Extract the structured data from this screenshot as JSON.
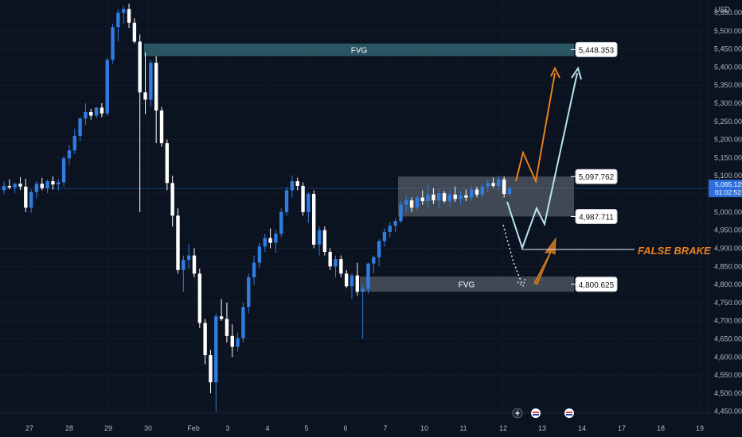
{
  "chart_data": {
    "type": "candlestick",
    "currency_label": "USD",
    "y_ticks": [
      "5,550.000",
      "5,500.000",
      "5,450.000",
      "5,400.000",
      "5,350.000",
      "5,300.000",
      "5,250.000",
      "5,200.000",
      "5,150.000",
      "5,100.000",
      "5,050.000",
      "5,000.000",
      "4,950.000",
      "4,900.000",
      "4,850.000",
      "4,800.000",
      "4,750.000",
      "4,700.000",
      "4,650.000",
      "4,600.000",
      "4,550.000",
      "4,500.000",
      "4,450.000"
    ],
    "y_tick_values": [
      5550,
      5500,
      5450,
      5400,
      5350,
      5300,
      5250,
      5200,
      5150,
      5100,
      5050,
      5000,
      4950,
      4900,
      4850,
      4800,
      4750,
      4700,
      4650,
      4600,
      4550,
      4500,
      4450
    ],
    "ylim": [
      4445,
      5585
    ],
    "x_labels": [
      "27",
      "28",
      "29",
      "30",
      "Feb",
      "3",
      "4",
      "5",
      "6",
      "7",
      "10",
      "11",
      "12",
      "13",
      "14",
      "17",
      "18",
      "19"
    ],
    "current_price": "5,065.125",
    "countdown": "01:02:52",
    "current_price_value": 5065.125,
    "colors": {
      "bull": "#2f7de1",
      "bear": "#ffffff",
      "fvg": "#2c5a66",
      "range": "#6e7480",
      "orange": "#e8801e",
      "lightblue": "#b9e3ef",
      "price_line": "#2f6fdc"
    },
    "candles": [
      {
        "o": 5060,
        "h": 5085,
        "l": 5050,
        "c": 5072
      },
      {
        "o": 5072,
        "h": 5090,
        "l": 5062,
        "c": 5068
      },
      {
        "o": 5068,
        "h": 5080,
        "l": 5052,
        "c": 5078
      },
      {
        "o": 5078,
        "h": 5096,
        "l": 5060,
        "c": 5070
      },
      {
        "o": 5070,
        "h": 5092,
        "l": 5000,
        "c": 5012
      },
      {
        "o": 5012,
        "h": 5062,
        "l": 4998,
        "c": 5055
      },
      {
        "o": 5055,
        "h": 5085,
        "l": 5038,
        "c": 5078
      },
      {
        "o": 5078,
        "h": 5094,
        "l": 5060,
        "c": 5066
      },
      {
        "o": 5066,
        "h": 5090,
        "l": 5052,
        "c": 5085
      },
      {
        "o": 5085,
        "h": 5098,
        "l": 5062,
        "c": 5076
      },
      {
        "o": 5076,
        "h": 5090,
        "l": 5060,
        "c": 5082
      },
      {
        "o": 5082,
        "h": 5155,
        "l": 5070,
        "c": 5148
      },
      {
        "o": 5148,
        "h": 5185,
        "l": 5130,
        "c": 5170
      },
      {
        "o": 5170,
        "h": 5230,
        "l": 5160,
        "c": 5210
      },
      {
        "o": 5210,
        "h": 5262,
        "l": 5195,
        "c": 5258
      },
      {
        "o": 5258,
        "h": 5300,
        "l": 5240,
        "c": 5276
      },
      {
        "o": 5276,
        "h": 5285,
        "l": 5255,
        "c": 5266
      },
      {
        "o": 5266,
        "h": 5290,
        "l": 5258,
        "c": 5288
      },
      {
        "o": 5288,
        "h": 5300,
        "l": 5262,
        "c": 5272
      },
      {
        "o": 5272,
        "h": 5425,
        "l": 5265,
        "c": 5420
      },
      {
        "o": 5420,
        "h": 5520,
        "l": 5410,
        "c": 5510
      },
      {
        "o": 5510,
        "h": 5560,
        "l": 5470,
        "c": 5550
      },
      {
        "o": 5550,
        "h": 5568,
        "l": 5520,
        "c": 5560
      },
      {
        "o": 5560,
        "h": 5575,
        "l": 5508,
        "c": 5522
      },
      {
        "o": 5522,
        "h": 5535,
        "l": 5465,
        "c": 5470
      },
      {
        "o": 5470,
        "h": 5490,
        "l": 5000,
        "c": 5330
      },
      {
        "o": 5330,
        "h": 5440,
        "l": 5270,
        "c": 5310
      },
      {
        "o": 5310,
        "h": 5420,
        "l": 5290,
        "c": 5412
      },
      {
        "o": 5412,
        "h": 5430,
        "l": 5190,
        "c": 5280
      },
      {
        "o": 5280,
        "h": 5290,
        "l": 5180,
        "c": 5190
      },
      {
        "o": 5190,
        "h": 5200,
        "l": 5060,
        "c": 5080
      },
      {
        "o": 5080,
        "h": 5100,
        "l": 4960,
        "c": 4990
      },
      {
        "o": 4990,
        "h": 5010,
        "l": 4830,
        "c": 4840
      },
      {
        "o": 4840,
        "h": 4880,
        "l": 4780,
        "c": 4868
      },
      {
        "o": 4868,
        "h": 4912,
        "l": 4842,
        "c": 4880
      },
      {
        "o": 4880,
        "h": 4900,
        "l": 4820,
        "c": 4830
      },
      {
        "o": 4830,
        "h": 4844,
        "l": 4680,
        "c": 4694
      },
      {
        "o": 4694,
        "h": 4705,
        "l": 4580,
        "c": 4605
      },
      {
        "o": 4605,
        "h": 4620,
        "l": 4500,
        "c": 4530
      },
      {
        "o": 4530,
        "h": 4720,
        "l": 4450,
        "c": 4712
      },
      {
        "o": 4712,
        "h": 4760,
        "l": 4700,
        "c": 4705
      },
      {
        "o": 4705,
        "h": 4750,
        "l": 4640,
        "c": 4658
      },
      {
        "o": 4658,
        "h": 4690,
        "l": 4600,
        "c": 4628
      },
      {
        "o": 4628,
        "h": 4668,
        "l": 4615,
        "c": 4652
      },
      {
        "o": 4652,
        "h": 4750,
        "l": 4640,
        "c": 4738
      },
      {
        "o": 4738,
        "h": 4830,
        "l": 4720,
        "c": 4820
      },
      {
        "o": 4820,
        "h": 4880,
        "l": 4800,
        "c": 4860
      },
      {
        "o": 4860,
        "h": 4915,
        "l": 4845,
        "c": 4905
      },
      {
        "o": 4905,
        "h": 4940,
        "l": 4890,
        "c": 4928
      },
      {
        "o": 4928,
        "h": 4955,
        "l": 4900,
        "c": 4915
      },
      {
        "o": 4915,
        "h": 4950,
        "l": 4888,
        "c": 4940
      },
      {
        "o": 4940,
        "h": 5010,
        "l": 4930,
        "c": 5000
      },
      {
        "o": 5000,
        "h": 5070,
        "l": 4990,
        "c": 5060
      },
      {
        "o": 5060,
        "h": 5100,
        "l": 5040,
        "c": 5085
      },
      {
        "o": 5085,
        "h": 5095,
        "l": 5060,
        "c": 5072
      },
      {
        "o": 5072,
        "h": 5082,
        "l": 4990,
        "c": 5000
      },
      {
        "o": 5000,
        "h": 5055,
        "l": 4970,
        "c": 5050
      },
      {
        "o": 5050,
        "h": 5060,
        "l": 4900,
        "c": 4910
      },
      {
        "o": 4910,
        "h": 4960,
        "l": 4880,
        "c": 4950
      },
      {
        "o": 4950,
        "h": 4960,
        "l": 4880,
        "c": 4890
      },
      {
        "o": 4890,
        "h": 4900,
        "l": 4840,
        "c": 4850
      },
      {
        "o": 4850,
        "h": 4880,
        "l": 4820,
        "c": 4870
      },
      {
        "o": 4870,
        "h": 4880,
        "l": 4820,
        "c": 4830
      },
      {
        "o": 4830,
        "h": 4840,
        "l": 4790,
        "c": 4795
      },
      {
        "o": 4795,
        "h": 4830,
        "l": 4760,
        "c": 4825
      },
      {
        "o": 4825,
        "h": 4860,
        "l": 4770,
        "c": 4780
      },
      {
        "o": 4780,
        "h": 4800,
        "l": 4650,
        "c": 4788
      },
      {
        "o": 4788,
        "h": 4860,
        "l": 4775,
        "c": 4858
      },
      {
        "o": 4858,
        "h": 4880,
        "l": 4830,
        "c": 4875
      },
      {
        "o": 4875,
        "h": 4925,
        "l": 4850,
        "c": 4920
      },
      {
        "o": 4920,
        "h": 4955,
        "l": 4905,
        "c": 4945
      },
      {
        "o": 4945,
        "h": 4972,
        "l": 4930,
        "c": 4962
      },
      {
        "o": 4962,
        "h": 4982,
        "l": 4945,
        "c": 4975
      },
      {
        "o": 4975,
        "h": 5030,
        "l": 4970,
        "c": 5020
      },
      {
        "o": 5020,
        "h": 5045,
        "l": 5000,
        "c": 5032
      },
      {
        "o": 5032,
        "h": 5040,
        "l": 5000,
        "c": 5012
      },
      {
        "o": 5012,
        "h": 5046,
        "l": 5005,
        "c": 5040
      },
      {
        "o": 5040,
        "h": 5060,
        "l": 5020,
        "c": 5030
      },
      {
        "o": 5030,
        "h": 5075,
        "l": 5012,
        "c": 5048
      },
      {
        "o": 5048,
        "h": 5066,
        "l": 5022,
        "c": 5032
      },
      {
        "o": 5032,
        "h": 5062,
        "l": 5010,
        "c": 5052
      },
      {
        "o": 5052,
        "h": 5058,
        "l": 5025,
        "c": 5030
      },
      {
        "o": 5030,
        "h": 5060,
        "l": 5015,
        "c": 5048
      },
      {
        "o": 5048,
        "h": 5070,
        "l": 5028,
        "c": 5036
      },
      {
        "o": 5036,
        "h": 5060,
        "l": 5020,
        "c": 5046
      },
      {
        "o": 5046,
        "h": 5062,
        "l": 5030,
        "c": 5040
      },
      {
        "o": 5040,
        "h": 5072,
        "l": 5030,
        "c": 5062
      },
      {
        "o": 5062,
        "h": 5070,
        "l": 5040,
        "c": 5048
      },
      {
        "o": 5048,
        "h": 5078,
        "l": 5040,
        "c": 5070
      },
      {
        "o": 5070,
        "h": 5090,
        "l": 5055,
        "c": 5080
      },
      {
        "o": 5080,
        "h": 5095,
        "l": 5066,
        "c": 5072
      },
      {
        "o": 5072,
        "h": 5100,
        "l": 5060,
        "c": 5090
      },
      {
        "o": 5090,
        "h": 5098,
        "l": 5040,
        "c": 5050
      },
      {
        "o": 5050,
        "h": 5072,
        "l": 5042,
        "c": 5065
      }
    ],
    "zones": [
      {
        "label": "FVG",
        "top": 5465,
        "bottom": 5430,
        "price_label": "5,448.353",
        "type": "fvg"
      },
      {
        "label": "",
        "top": 5097.762,
        "bottom": 4987.711,
        "price_label_top": "5,097.762",
        "price_label_bottom": "4,987.711",
        "type": "range"
      },
      {
        "label": "FVG",
        "top": 4822,
        "bottom": 4780,
        "price_label": "4,800.625",
        "type": "fvg"
      }
    ],
    "annotations": [
      {
        "text": "FALSE BRAKE",
        "color": "#e8801e"
      }
    ],
    "icons": [
      "lightning-icon",
      "flag-icon",
      "flag-icon"
    ]
  }
}
